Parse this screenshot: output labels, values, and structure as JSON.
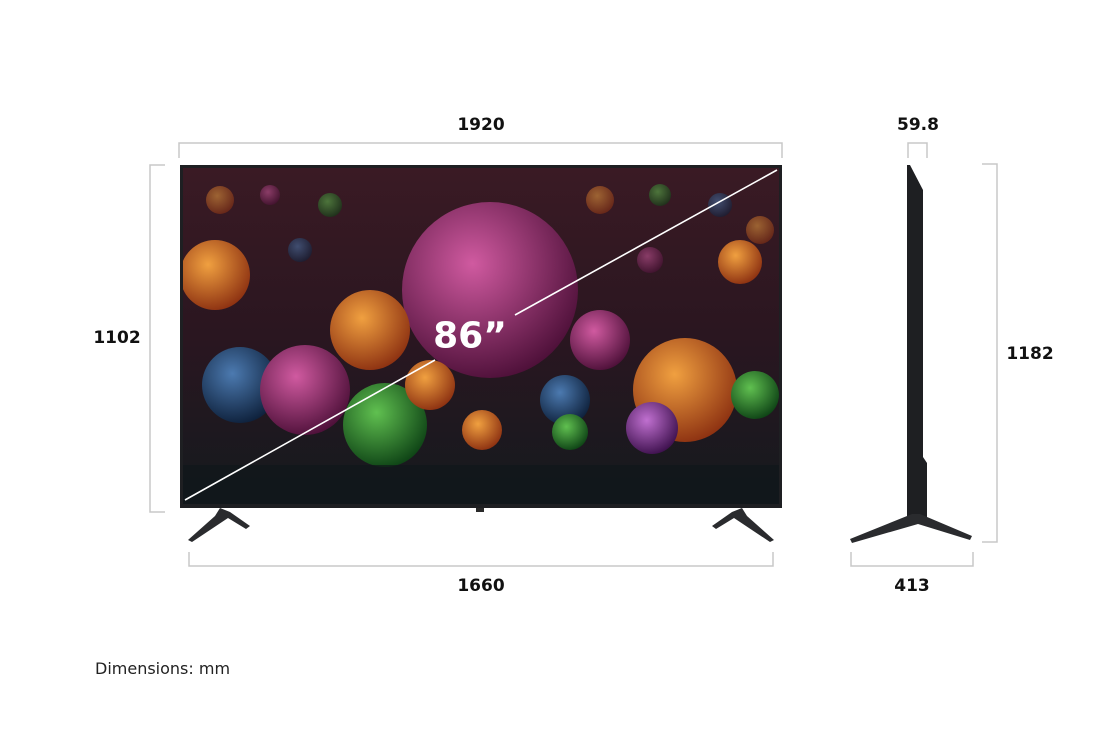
{
  "diagram": {
    "units_note": "Dimensions: mm",
    "screen_size_label": "86”",
    "front": {
      "width_label": "1920",
      "height_label": "1102",
      "stand_width_label": "1660"
    },
    "side": {
      "depth_label": "59.8",
      "height_label": "1182",
      "stand_depth_label": "413"
    },
    "colors": {
      "dimension_line": "#c8c8c8",
      "tv_body": "#1e1f22",
      "text": "#111111"
    }
  }
}
